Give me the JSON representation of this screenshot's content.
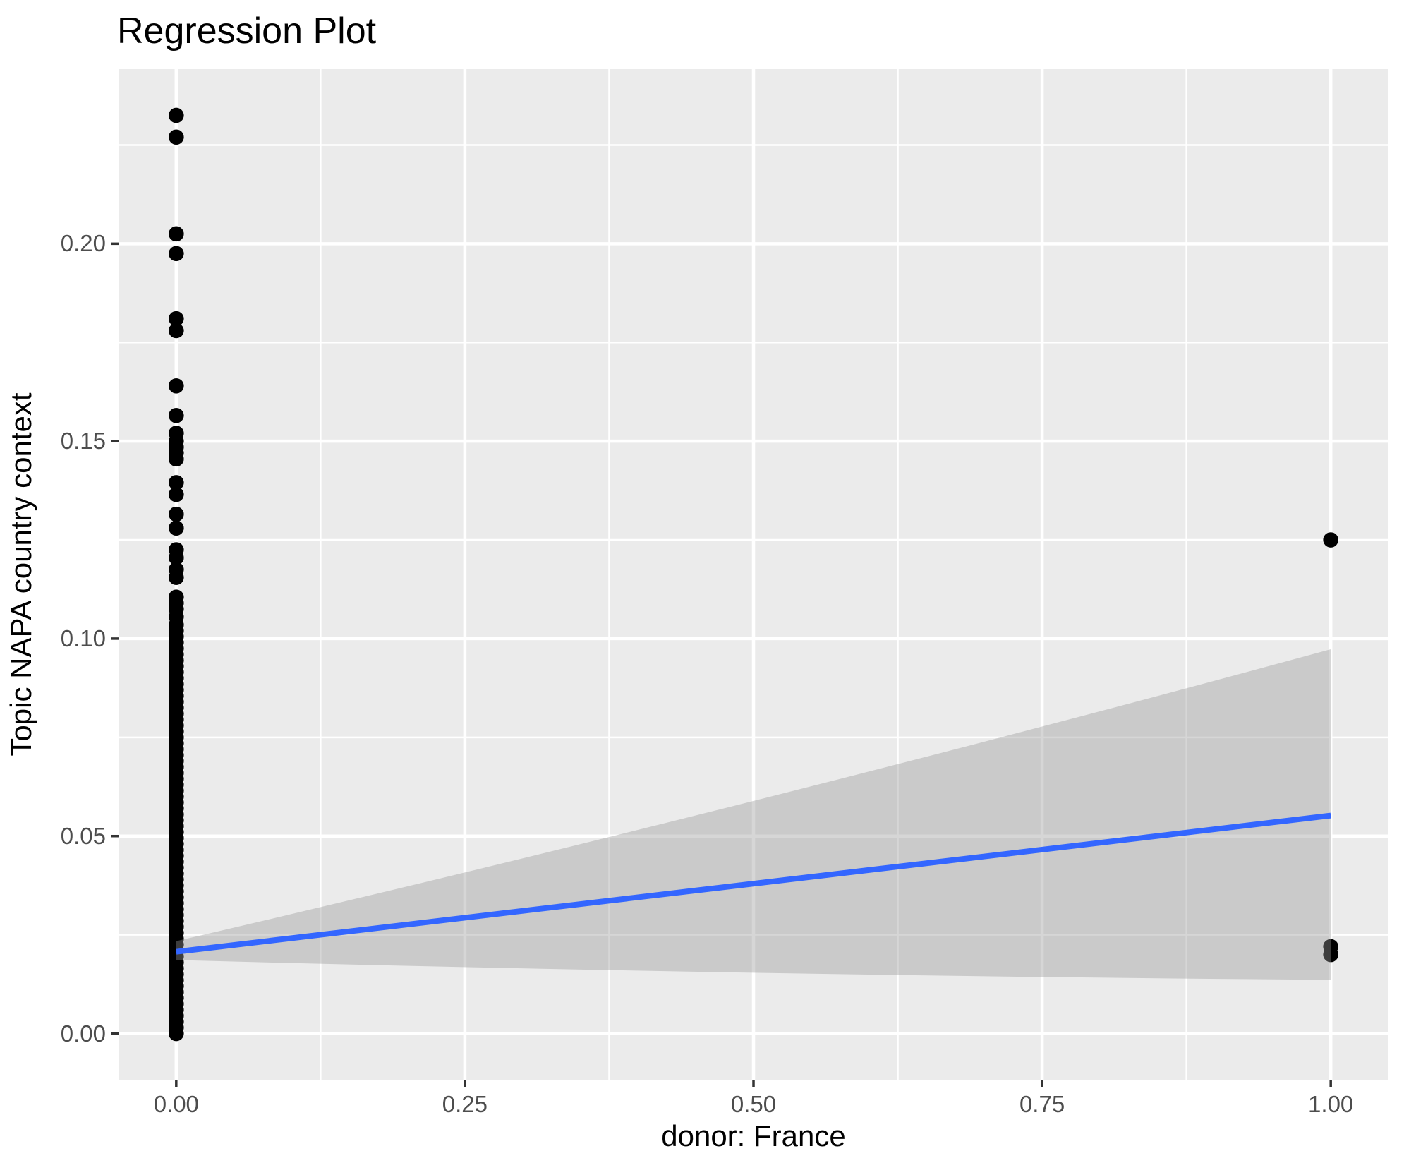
{
  "chart_data": {
    "type": "scatter",
    "title": "Regression Plot",
    "xlabel": "donor: France",
    "ylabel": "Topic NAPA country context",
    "legend": "none",
    "grid": true,
    "xlim": [
      -0.05,
      1.05
    ],
    "ylim": [
      -0.0117,
      0.2442
    ],
    "x_major_ticks": [
      0,
      0.25,
      0.5,
      0.75,
      1
    ],
    "x_tick_labels": [
      "0.00",
      "0.25",
      "0.50",
      "0.75",
      "1.00"
    ],
    "x_minor_gridlines": [
      0.125,
      0.375,
      0.625,
      0.875
    ],
    "y_major_ticks": [
      0,
      0.05,
      0.1,
      0.15,
      0.2
    ],
    "y_tick_labels": [
      "0.00",
      "0.05",
      "0.10",
      "0.15",
      "0.20"
    ],
    "y_minor_gridlines": [
      0.025,
      0.075,
      0.125,
      0.175,
      0.225
    ],
    "points": {
      "x0_dense_column": {
        "x": 0,
        "from": 0.0,
        "to": 0.1035,
        "step": 0.0015
      },
      "x0_discrete": [
        0.1055,
        0.1075,
        0.109,
        0.1105,
        0.1155,
        0.1175,
        0.1205,
        0.1225,
        0.128,
        0.1315,
        0.1365,
        0.1395,
        0.1455,
        0.147,
        0.1485,
        0.15,
        0.152,
        0.1565,
        0.164,
        0.178,
        0.181,
        0.1975,
        0.2025,
        0.227,
        0.2325
      ],
      "x1_points": [
        0.02,
        0.022,
        0.125
      ]
    },
    "regression_line": {
      "x": [
        0,
        1
      ],
      "y": [
        0.0207,
        0.0552
      ]
    },
    "ci_ribbon": {
      "x": [
        0,
        0.5,
        1
      ],
      "upper": [
        0.0234,
        0.0589,
        0.0973
      ],
      "lower": [
        0.0186,
        0.0154,
        0.0136
      ]
    },
    "colors": {
      "panel_background": "#EBEBEB",
      "gridline": "#FFFFFF",
      "point": "#000000",
      "line": "#3366FF",
      "ribbon": "#999999",
      "ribbon_opacity": 0.4,
      "tick_mark": "#333333",
      "tick_label": "#4D4D4D",
      "title": "#000000"
    }
  }
}
